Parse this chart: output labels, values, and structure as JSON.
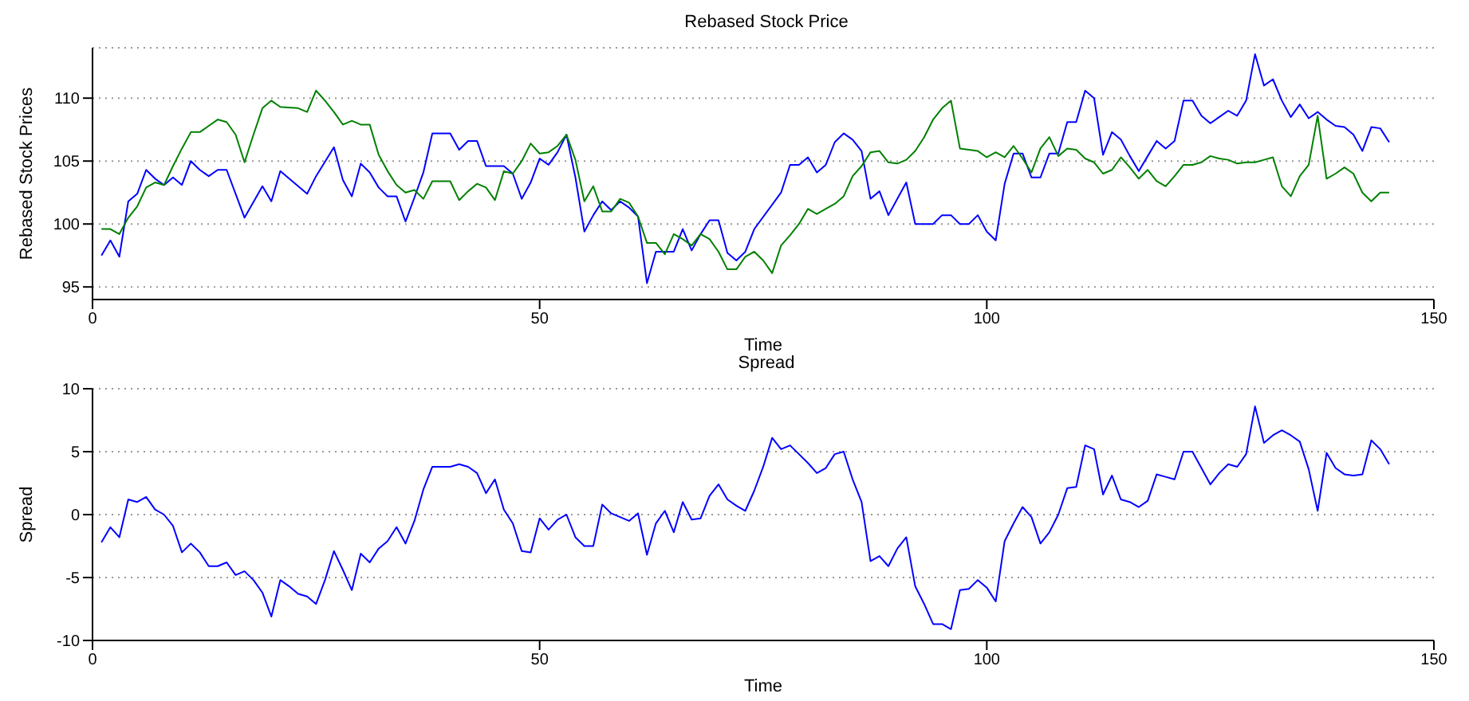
{
  "chart_data": [
    {
      "type": "line",
      "title": "Rebased Stock Price",
      "xlabel": "Time",
      "ylabel": "Rebased Stock Prices",
      "xlim": [
        0,
        150
      ],
      "xticks": [
        0,
        50,
        100,
        150
      ],
      "ylim": [
        94,
        114
      ],
      "yticks": [
        95,
        100,
        105,
        110
      ],
      "grid": "y",
      "line_style": "solid",
      "series": [
        {
          "color": "#0000ff",
          "x": [
            1,
            2,
            3,
            4,
            5,
            6,
            7,
            8,
            9,
            10,
            11,
            12,
            13,
            14,
            15,
            17,
            19,
            20,
            21,
            23,
            24,
            25,
            27,
            28,
            29,
            30,
            31,
            32,
            33,
            34,
            35,
            36,
            37,
            38,
            40,
            41,
            42,
            43,
            44,
            46,
            47,
            48,
            49,
            50,
            51,
            52,
            53,
            54,
            55,
            56,
            57,
            58,
            59,
            60,
            61,
            62,
            63,
            64,
            65,
            66,
            67,
            68,
            69,
            70,
            71,
            72,
            73,
            74,
            77,
            78,
            79,
            80,
            81,
            82,
            83,
            84,
            85,
            86,
            87,
            88,
            89,
            90,
            91,
            92,
            94,
            95,
            96,
            97,
            98,
            99,
            100,
            101,
            102,
            103,
            104,
            105,
            106,
            107,
            108,
            109,
            110,
            111,
            112,
            113,
            114,
            115,
            116,
            117,
            118,
            119,
            120,
            121,
            122,
            123,
            124,
            125,
            126,
            127,
            128,
            129,
            130,
            131,
            132,
            133,
            134,
            135,
            136,
            137,
            138,
            139,
            140,
            141,
            142,
            143,
            144,
            145
          ],
          "values": [
            97.5,
            98.7,
            97.4,
            101.8,
            102.4,
            104.3,
            103.6,
            103.1,
            103.7,
            103.1,
            105.0,
            104.3,
            103.8,
            104.3,
            104.3,
            100.5,
            103.0,
            101.8,
            104.2,
            103.0,
            102.4,
            103.8,
            106.1,
            103.5,
            102.2,
            104.8,
            104.1,
            102.9,
            102.2,
            102.2,
            100.2,
            102.1,
            104.1,
            107.2,
            107.2,
            105.9,
            106.6,
            106.6,
            104.6,
            104.6,
            104.0,
            102.0,
            103.3,
            105.2,
            104.7,
            105.7,
            107.1,
            103.7,
            99.4,
            100.7,
            101.8,
            101.1,
            101.8,
            101.3,
            100.6,
            95.3,
            97.8,
            97.8,
            97.8,
            99.6,
            97.9,
            99.2,
            100.3,
            100.3,
            97.7,
            97.1,
            97.8,
            99.6,
            102.5,
            104.7,
            104.7,
            105.3,
            104.1,
            104.7,
            106.5,
            107.2,
            106.7,
            105.8,
            102.0,
            102.6,
            100.7,
            102.0,
            103.3,
            100.0,
            100.0,
            100.7,
            100.7,
            100.0,
            100.0,
            100.7,
            99.4,
            98.7,
            103.2,
            105.6,
            105.6,
            103.7,
            103.7,
            105.6,
            105.6,
            108.1,
            108.1,
            110.6,
            110.0,
            105.5,
            107.3,
            106.7,
            105.4,
            104.2,
            105.4,
            106.6,
            106.0,
            106.6,
            109.8,
            109.8,
            108.6,
            108.0,
            108.5,
            109.0,
            108.6,
            109.8,
            113.5,
            111.0,
            111.5,
            109.8,
            108.5,
            109.5,
            108.4,
            108.9,
            108.3,
            107.8,
            107.7,
            107.1,
            105.8,
            107.7,
            107.6,
            106.5
          ]
        },
        {
          "color": "#008000",
          "x": [
            1,
            2,
            3,
            4,
            5,
            6,
            7,
            8,
            9,
            10,
            11,
            12,
            13,
            14,
            15,
            16,
            17,
            18,
            19,
            20,
            21,
            23,
            24,
            25,
            26,
            27,
            28,
            29,
            30,
            31,
            32,
            33,
            34,
            35,
            36,
            37,
            38,
            40,
            41,
            42,
            43,
            44,
            45,
            46,
            47,
            48,
            49,
            50,
            51,
            52,
            53,
            54,
            55,
            56,
            57,
            58,
            59,
            60,
            61,
            62,
            63,
            64,
            65,
            66,
            67,
            68,
            69,
            70,
            71,
            72,
            73,
            74,
            75,
            76,
            77,
            78,
            79,
            80,
            81,
            82,
            83,
            84,
            85,
            86,
            87,
            88,
            89,
            90,
            91,
            92,
            93,
            94,
            95,
            96,
            97,
            99,
            100,
            101,
            102,
            103,
            104,
            105,
            106,
            107,
            108,
            109,
            110,
            111,
            112,
            113,
            114,
            115,
            116,
            117,
            118,
            119,
            120,
            121,
            122,
            123,
            124,
            125,
            126,
            127,
            128,
            129,
            130,
            131,
            132,
            133,
            134,
            135,
            136,
            137,
            138,
            139,
            140,
            141,
            142,
            143,
            144,
            145
          ],
          "values": [
            99.6,
            99.6,
            99.2,
            100.5,
            101.4,
            102.9,
            103.3,
            103.1,
            104.6,
            106.0,
            107.3,
            107.3,
            107.8,
            108.3,
            108.1,
            107.1,
            104.9,
            107.1,
            109.2,
            109.8,
            109.3,
            109.2,
            108.9,
            110.6,
            109.8,
            108.9,
            107.9,
            108.2,
            107.9,
            107.9,
            105.5,
            104.2,
            103.1,
            102.5,
            102.7,
            102.0,
            103.4,
            103.4,
            101.9,
            102.6,
            103.2,
            102.9,
            101.9,
            104.2,
            104.0,
            105.0,
            106.4,
            105.6,
            105.7,
            106.2,
            107.1,
            105.1,
            101.8,
            103.0,
            101.0,
            101.0,
            102.0,
            101.7,
            100.6,
            98.5,
            98.5,
            97.6,
            99.2,
            98.8,
            98.3,
            99.2,
            98.8,
            97.8,
            96.4,
            96.4,
            97.4,
            97.8,
            97.1,
            96.1,
            98.3,
            99.1,
            100.0,
            101.2,
            100.8,
            101.2,
            101.6,
            102.2,
            103.8,
            104.6,
            105.7,
            105.8,
            104.9,
            104.8,
            105.1,
            105.8,
            106.9,
            108.3,
            109.2,
            109.8,
            106.0,
            105.8,
            105.3,
            105.7,
            105.3,
            106.2,
            105.2,
            104.1,
            106.0,
            106.9,
            105.4,
            106.0,
            105.9,
            105.2,
            104.9,
            104.0,
            104.3,
            105.3,
            104.5,
            103.6,
            104.3,
            103.4,
            103.0,
            103.8,
            104.7,
            104.7,
            104.9,
            105.4,
            105.2,
            105.1,
            104.8,
            104.9,
            104.9,
            105.1,
            105.3,
            103.0,
            102.2,
            103.8,
            104.7,
            108.6,
            103.6,
            104.0,
            104.5,
            104.0,
            102.5,
            101.8,
            102.5,
            102.5
          ]
        }
      ]
    },
    {
      "type": "line",
      "title": "Spread",
      "xlabel": "Time",
      "ylabel": "Spread",
      "xlim": [
        0,
        150
      ],
      "xticks": [
        0,
        50,
        100,
        150
      ],
      "ylim": [
        -10,
        10
      ],
      "yticks": [
        -10,
        -5,
        0,
        5,
        10
      ],
      "grid": "y",
      "line_style": "solid",
      "series": [
        {
          "color": "#0000ff",
          "x": [
            1,
            2,
            3,
            4,
            5,
            6,
            7,
            8,
            9,
            10,
            11,
            12,
            13,
            14,
            15,
            16,
            17,
            18,
            19,
            20,
            21,
            22,
            23,
            24,
            25,
            26,
            27,
            28,
            29,
            30,
            31,
            32,
            33,
            34,
            35,
            36,
            37,
            38,
            40,
            41,
            42,
            43,
            44,
            45,
            46,
            47,
            48,
            49,
            50,
            51,
            52,
            53,
            54,
            55,
            56,
            57,
            58,
            59,
            60,
            61,
            62,
            63,
            64,
            65,
            66,
            67,
            68,
            69,
            70,
            71,
            72,
            73,
            74,
            75,
            76,
            77,
            78,
            79,
            80,
            81,
            82,
            83,
            84,
            85,
            86,
            87,
            88,
            89,
            90,
            91,
            92,
            93,
            94,
            95,
            96,
            97,
            98,
            99,
            100,
            101,
            102,
            103,
            104,
            105,
            106,
            107,
            108,
            109,
            110,
            111,
            112,
            113,
            114,
            115,
            116,
            117,
            118,
            119,
            120,
            121,
            122,
            123,
            124,
            125,
            126,
            127,
            128,
            129,
            130,
            131,
            132,
            133,
            134,
            135,
            136,
            137,
            138,
            139,
            140,
            141,
            142,
            143,
            144,
            145
          ],
          "values": [
            -2.2,
            -1.0,
            -1.8,
            1.2,
            1.0,
            1.4,
            0.4,
            0.0,
            -0.9,
            -3.0,
            -2.3,
            -3.0,
            -4.1,
            -4.1,
            -3.8,
            -4.8,
            -4.5,
            -5.2,
            -6.2,
            -8.1,
            -5.2,
            -5.7,
            -6.3,
            -6.5,
            -7.1,
            -5.2,
            -2.9,
            -4.4,
            -6.0,
            -3.1,
            -3.8,
            -2.7,
            -2.1,
            -1.0,
            -2.3,
            -0.5,
            2.0,
            3.8,
            3.8,
            4.0,
            3.8,
            3.3,
            1.7,
            2.8,
            0.4,
            -0.7,
            -2.9,
            -3.0,
            -0.3,
            -1.2,
            -0.4,
            0.0,
            -1.8,
            -2.5,
            -2.5,
            0.8,
            0.1,
            -0.2,
            -0.5,
            0.1,
            -3.2,
            -0.7,
            0.3,
            -1.4,
            1.0,
            -0.4,
            -0.3,
            1.5,
            2.4,
            1.2,
            0.7,
            0.3,
            1.9,
            3.8,
            6.1,
            5.2,
            5.5,
            4.8,
            4.1,
            3.3,
            3.7,
            4.8,
            5.0,
            2.8,
            1.0,
            -3.7,
            -3.3,
            -4.1,
            -2.7,
            -1.8,
            -5.7,
            -7.1,
            -8.7,
            -8.7,
            -9.1,
            -6.0,
            -5.9,
            -5.2,
            -5.8,
            -6.9,
            -2.1,
            -0.7,
            0.6,
            -0.2,
            -2.3,
            -1.4,
            0.0,
            2.1,
            2.2,
            5.5,
            5.2,
            1.6,
            3.1,
            1.2,
            1.0,
            0.6,
            1.1,
            3.2,
            3.0,
            2.8,
            5.0,
            5.0,
            3.7,
            2.4,
            3.3,
            4.0,
            3.8,
            4.8,
            8.6,
            5.7,
            6.3,
            6.7,
            6.3,
            5.8,
            3.6,
            0.3,
            4.9,
            3.7,
            3.2,
            3.1,
            3.2,
            5.9,
            5.2,
            4.0
          ]
        }
      ]
    }
  ]
}
